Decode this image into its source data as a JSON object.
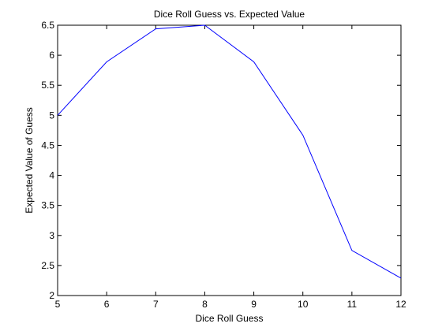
{
  "chart_data": {
    "type": "line",
    "title": "Dice Roll Guess vs. Expected Value",
    "xlabel": "Dice Roll Guess",
    "ylabel": "Expected Value of Guess",
    "xlim": [
      5,
      12
    ],
    "ylim": [
      2,
      6.5
    ],
    "xticks": [
      5,
      6,
      7,
      8,
      9,
      10,
      11,
      12
    ],
    "yticks": [
      2,
      2.5,
      3,
      3.5,
      4,
      4.5,
      5,
      5.5,
      6,
      6.5
    ],
    "grid": false,
    "series": [
      {
        "color": "#0000ff",
        "x": [
          5,
          6,
          7,
          8,
          9,
          10,
          11,
          12
        ],
        "y": [
          5.0,
          5.89,
          6.44,
          6.5,
          5.89,
          4.67,
          2.75,
          2.29
        ]
      }
    ]
  }
}
